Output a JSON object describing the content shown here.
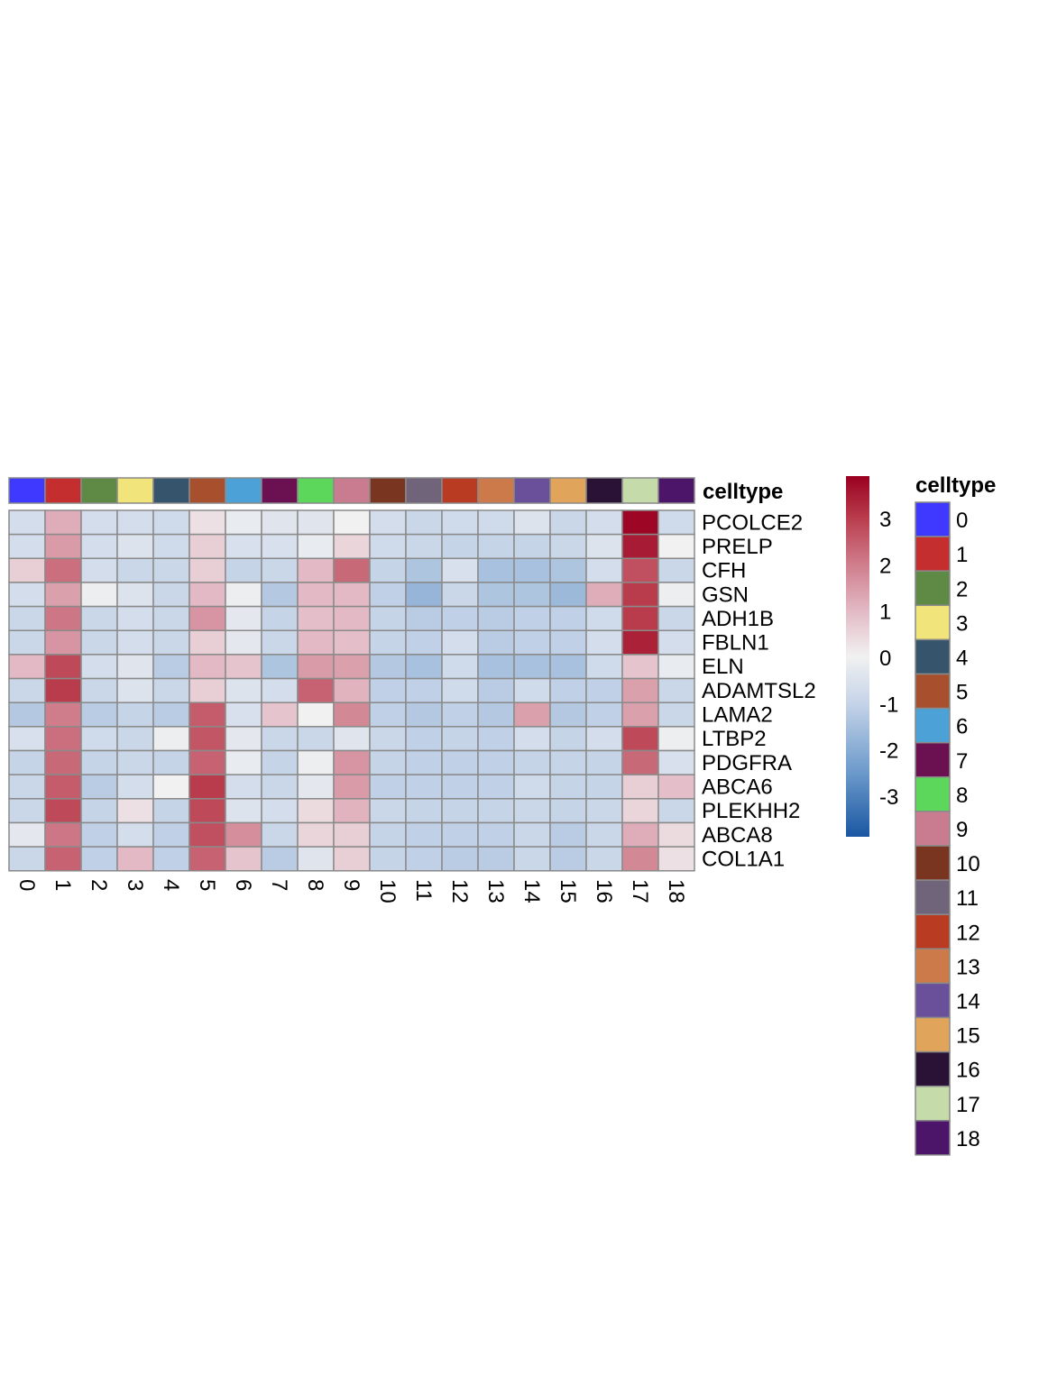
{
  "chart_data": {
    "type": "heatmap",
    "annotation_title": "celltype",
    "legend_title": "celltype",
    "columns": [
      "0",
      "1",
      "2",
      "3",
      "4",
      "5",
      "6",
      "7",
      "8",
      "9",
      "10",
      "11",
      "12",
      "13",
      "14",
      "15",
      "16",
      "17",
      "18"
    ],
    "rows": [
      "PCOLCE2",
      "PRELP",
      "CFH",
      "GSN",
      "ADH1B",
      "FBLN1",
      "ELN",
      "ADAMTSL2",
      "LAMA2",
      "LTBP2",
      "PDGFRA",
      "ABCA6",
      "PLEKHH2",
      "ABCA8",
      "COL1A1"
    ],
    "celltype_colors": [
      "#3f38ff",
      "#c42e2e",
      "#5f8a45",
      "#f0e47a",
      "#36546b",
      "#a8502e",
      "#4ca2d6",
      "#6b1151",
      "#5dd65c",
      "#c97b90",
      "#7a3520",
      "#6f6479",
      "#b93c22",
      "#cc7a4a",
      "#6a4f9a",
      "#e0a55a",
      "#2a1236",
      "#c5dcaa",
      "#4d1569"
    ],
    "values": [
      [
        -0.7,
        1.2,
        -0.7,
        -0.7,
        -0.8,
        0.3,
        -0.2,
        -0.4,
        -0.4,
        0.0,
        -0.7,
        -0.9,
        -0.8,
        -0.8,
        -0.5,
        -0.9,
        -0.7,
        3.8,
        -0.8
      ],
      [
        -0.7,
        1.5,
        -0.7,
        -0.5,
        -0.8,
        0.6,
        -0.6,
        -0.6,
        -0.2,
        0.5,
        -0.8,
        -0.9,
        -1.0,
        -1.0,
        -1.0,
        -0.9,
        -0.5,
        3.5,
        0.0
      ],
      [
        0.6,
        2.2,
        -0.7,
        -0.9,
        -0.9,
        0.6,
        -1.0,
        -0.9,
        1.0,
        2.3,
        -1.0,
        -1.4,
        -0.6,
        -1.5,
        -1.5,
        -1.4,
        -0.7,
        2.7,
        -0.9
      ],
      [
        -0.7,
        1.4,
        -0.1,
        -0.5,
        -0.9,
        1.0,
        -0.1,
        -1.3,
        1.0,
        1.0,
        -1.1,
        -1.8,
        -0.9,
        -1.4,
        -1.4,
        -1.7,
        1.2,
        3.0,
        -0.1
      ],
      [
        -0.9,
        2.1,
        -0.9,
        -0.7,
        -0.9,
        1.6,
        -0.3,
        -1.0,
        0.9,
        1.0,
        -1.0,
        -1.2,
        -1.1,
        -1.2,
        -1.1,
        -1.1,
        -0.8,
        3.0,
        -0.9
      ],
      [
        -0.9,
        1.6,
        -0.9,
        -0.7,
        -0.9,
        0.6,
        -0.3,
        -0.9,
        1.0,
        0.9,
        -1.0,
        -1.1,
        -0.7,
        -1.2,
        -1.1,
        -1.1,
        -0.7,
        3.4,
        -0.7
      ],
      [
        1.0,
        2.8,
        -0.7,
        -0.4,
        -1.2,
        1.0,
        0.8,
        -1.4,
        1.5,
        1.4,
        -1.3,
        -1.5,
        -0.8,
        -1.5,
        -1.5,
        -1.5,
        -0.8,
        0.8,
        -0.2
      ],
      [
        -0.9,
        3.0,
        -0.9,
        -0.5,
        -0.9,
        0.6,
        -0.5,
        -0.7,
        2.4,
        1.1,
        -1.1,
        -1.1,
        -0.8,
        -1.2,
        -0.8,
        -1.1,
        -1.1,
        1.4,
        -0.9
      ],
      [
        -1.3,
        2.0,
        -1.2,
        -1.0,
        -1.2,
        2.5,
        -0.6,
        0.8,
        0.0,
        1.8,
        -1.1,
        -1.3,
        -1.1,
        -1.3,
        1.4,
        -1.3,
        -1.1,
        1.4,
        -0.9
      ],
      [
        -0.6,
        2.2,
        -0.8,
        -0.9,
        -0.1,
        2.6,
        -0.3,
        -0.9,
        -0.9,
        -0.4,
        -0.9,
        -1.1,
        -1.0,
        -1.1,
        -0.7,
        -1.0,
        -0.7,
        2.8,
        -0.1
      ],
      [
        -1.0,
        2.3,
        -1.0,
        -0.9,
        -1.0,
        2.4,
        -0.2,
        -1.0,
        -0.1,
        1.6,
        -1.0,
        -1.1,
        -1.1,
        -1.1,
        -1.0,
        -1.0,
        -1.0,
        2.3,
        -0.6
      ],
      [
        -0.9,
        2.5,
        -1.2,
        -0.7,
        0.0,
        3.0,
        -0.7,
        -0.9,
        -0.3,
        1.5,
        -1.1,
        -1.1,
        -1.1,
        -1.1,
        -0.8,
        -1.0,
        -1.0,
        0.6,
        0.9
      ],
      [
        -0.9,
        2.8,
        -1.0,
        0.3,
        -1.0,
        2.8,
        -0.5,
        -0.7,
        0.4,
        1.1,
        -0.9,
        -1.0,
        -1.0,
        -1.0,
        -0.9,
        -1.0,
        -0.9,
        0.5,
        -0.9
      ],
      [
        -0.3,
        2.1,
        -1.1,
        -0.7,
        -1.1,
        2.7,
        1.7,
        -0.9,
        0.5,
        0.6,
        -1.0,
        -1.1,
        -1.1,
        -1.1,
        -0.9,
        -1.2,
        -0.9,
        1.2,
        0.4
      ],
      [
        -0.9,
        2.4,
        -1.1,
        1.0,
        -1.1,
        2.4,
        0.8,
        -1.2,
        -0.4,
        0.6,
        -1.0,
        -1.1,
        -1.2,
        -1.2,
        -0.9,
        -1.2,
        -0.9,
        1.8,
        0.3
      ]
    ],
    "color_scale": {
      "min": -3.9,
      "max": 3.9,
      "stops": [
        {
          "value": -3.9,
          "color": "#1a57a2"
        },
        {
          "value": -2.5,
          "color": "#6c9acb"
        },
        {
          "value": -1.0,
          "color": "#c6d4e8"
        },
        {
          "value": 0.0,
          "color": "#f1f1f1"
        },
        {
          "value": 1.0,
          "color": "#e2b9c4"
        },
        {
          "value": 2.0,
          "color": "#cf7c8b"
        },
        {
          "value": 3.0,
          "color": "#b93c4c"
        },
        {
          "value": 3.9,
          "color": "#9a0020"
        }
      ],
      "ticks": [
        3,
        2,
        1,
        0,
        -1,
        -2,
        -3
      ],
      "tick_labels": [
        "3",
        "2",
        "1",
        "0",
        "-1",
        "-2",
        "-3"
      ]
    }
  }
}
